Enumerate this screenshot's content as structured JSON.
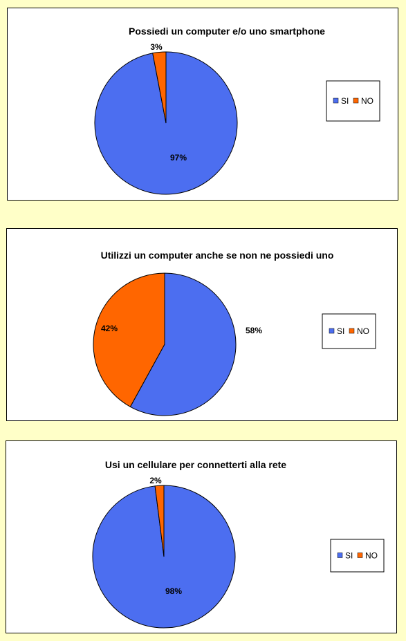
{
  "chart_data": [
    {
      "type": "pie",
      "title": "Possiedi un computer e/o uno smartphone",
      "slices": [
        {
          "label": "SI",
          "value": 97,
          "data_label": "97%",
          "color": "#4C6EF0"
        },
        {
          "label": "NO",
          "value": 3,
          "data_label": "3%",
          "color": "#FF6600"
        }
      ],
      "legend_position": "right"
    },
    {
      "type": "pie",
      "title": "Utilizzi un computer anche se non ne possiedi  uno",
      "slices": [
        {
          "label": "SI",
          "value": 58,
          "data_label": "58%",
          "color": "#4C6EF0"
        },
        {
          "label": "NO",
          "value": 42,
          "data_label": "42%",
          "color": "#FF6600"
        }
      ],
      "legend_position": "right"
    },
    {
      "type": "pie",
      "title": "Usi un cellulare per connetterti alla rete",
      "slices": [
        {
          "label": "SI",
          "value": 98,
          "data_label": "98%",
          "color": "#4C6EF0"
        },
        {
          "label": "NO",
          "value": 2,
          "data_label": "2%",
          "color": "#FF6600"
        }
      ],
      "legend_position": "right"
    }
  ],
  "colors": {
    "page_background": "#FFFFC8",
    "si": "#4C6EF0",
    "no": "#FF6600"
  }
}
